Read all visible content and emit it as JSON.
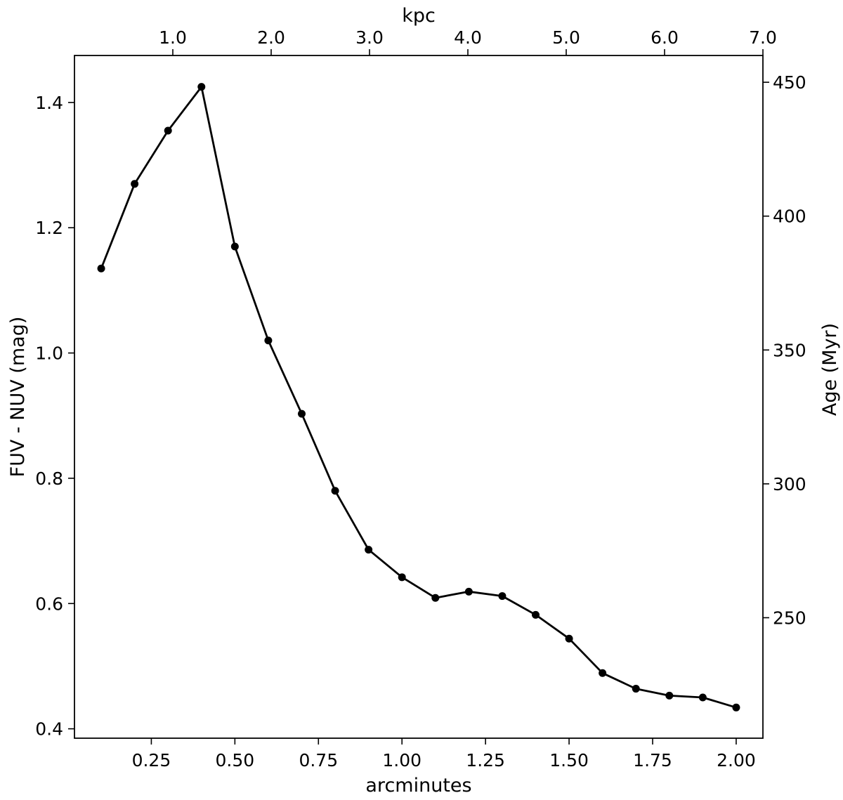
{
  "chart_data": {
    "type": "line",
    "title": "",
    "xlabel": "arcminutes",
    "ylabel": "FUV - NUV (mag)",
    "top_xlabel": "kpc",
    "right_ylabel": "Age (Myr)",
    "xlim": [
      0.02,
      2.08
    ],
    "ylim": [
      0.385,
      1.475
    ],
    "top_xlim": [
      0.0,
      7.0
    ],
    "right_ylim": [
      205,
      460
    ],
    "x_ticks": [
      {
        "value": 0.25,
        "label": "0.25"
      },
      {
        "value": 0.5,
        "label": "0.50"
      },
      {
        "value": 0.75,
        "label": "0.75"
      },
      {
        "value": 1.0,
        "label": "1.00"
      },
      {
        "value": 1.25,
        "label": "1.25"
      },
      {
        "value": 1.5,
        "label": "1.50"
      },
      {
        "value": 1.75,
        "label": "1.75"
      },
      {
        "value": 2.0,
        "label": "2.00"
      }
    ],
    "y_ticks": [
      {
        "value": 0.4,
        "label": "0.4"
      },
      {
        "value": 0.6,
        "label": "0.6"
      },
      {
        "value": 0.8,
        "label": "0.8"
      },
      {
        "value": 1.0,
        "label": "1.0"
      },
      {
        "value": 1.2,
        "label": "1.2"
      },
      {
        "value": 1.4,
        "label": "1.4"
      }
    ],
    "top_ticks": [
      {
        "value": 1.0,
        "label": "1.0"
      },
      {
        "value": 2.0,
        "label": "2.0"
      },
      {
        "value": 3.0,
        "label": "3.0"
      },
      {
        "value": 4.0,
        "label": "4.0"
      },
      {
        "value": 5.0,
        "label": "5.0"
      },
      {
        "value": 6.0,
        "label": "6.0"
      },
      {
        "value": 7.0,
        "label": "7.0"
      }
    ],
    "right_ticks": [
      {
        "value": 250,
        "label": "250"
      },
      {
        "value": 300,
        "label": "300"
      },
      {
        "value": 350,
        "label": "350"
      },
      {
        "value": 400,
        "label": "400"
      },
      {
        "value": 450,
        "label": "450"
      }
    ],
    "grid": false,
    "series": [
      {
        "color": "#000000",
        "marker": "circle",
        "x": [
          0.1,
          0.2,
          0.3,
          0.4,
          0.5,
          0.6,
          0.7,
          0.8,
          0.9,
          1.0,
          1.1,
          1.2,
          1.3,
          1.4,
          1.5,
          1.6,
          1.7,
          1.8,
          1.9,
          2.0
        ],
        "y": [
          1.135,
          1.27,
          1.355,
          1.425,
          1.17,
          1.02,
          0.903,
          0.78,
          0.686,
          0.642,
          0.609,
          0.619,
          0.612,
          0.582,
          0.544,
          0.489,
          0.464,
          0.453,
          0.45,
          0.434
        ]
      }
    ]
  }
}
